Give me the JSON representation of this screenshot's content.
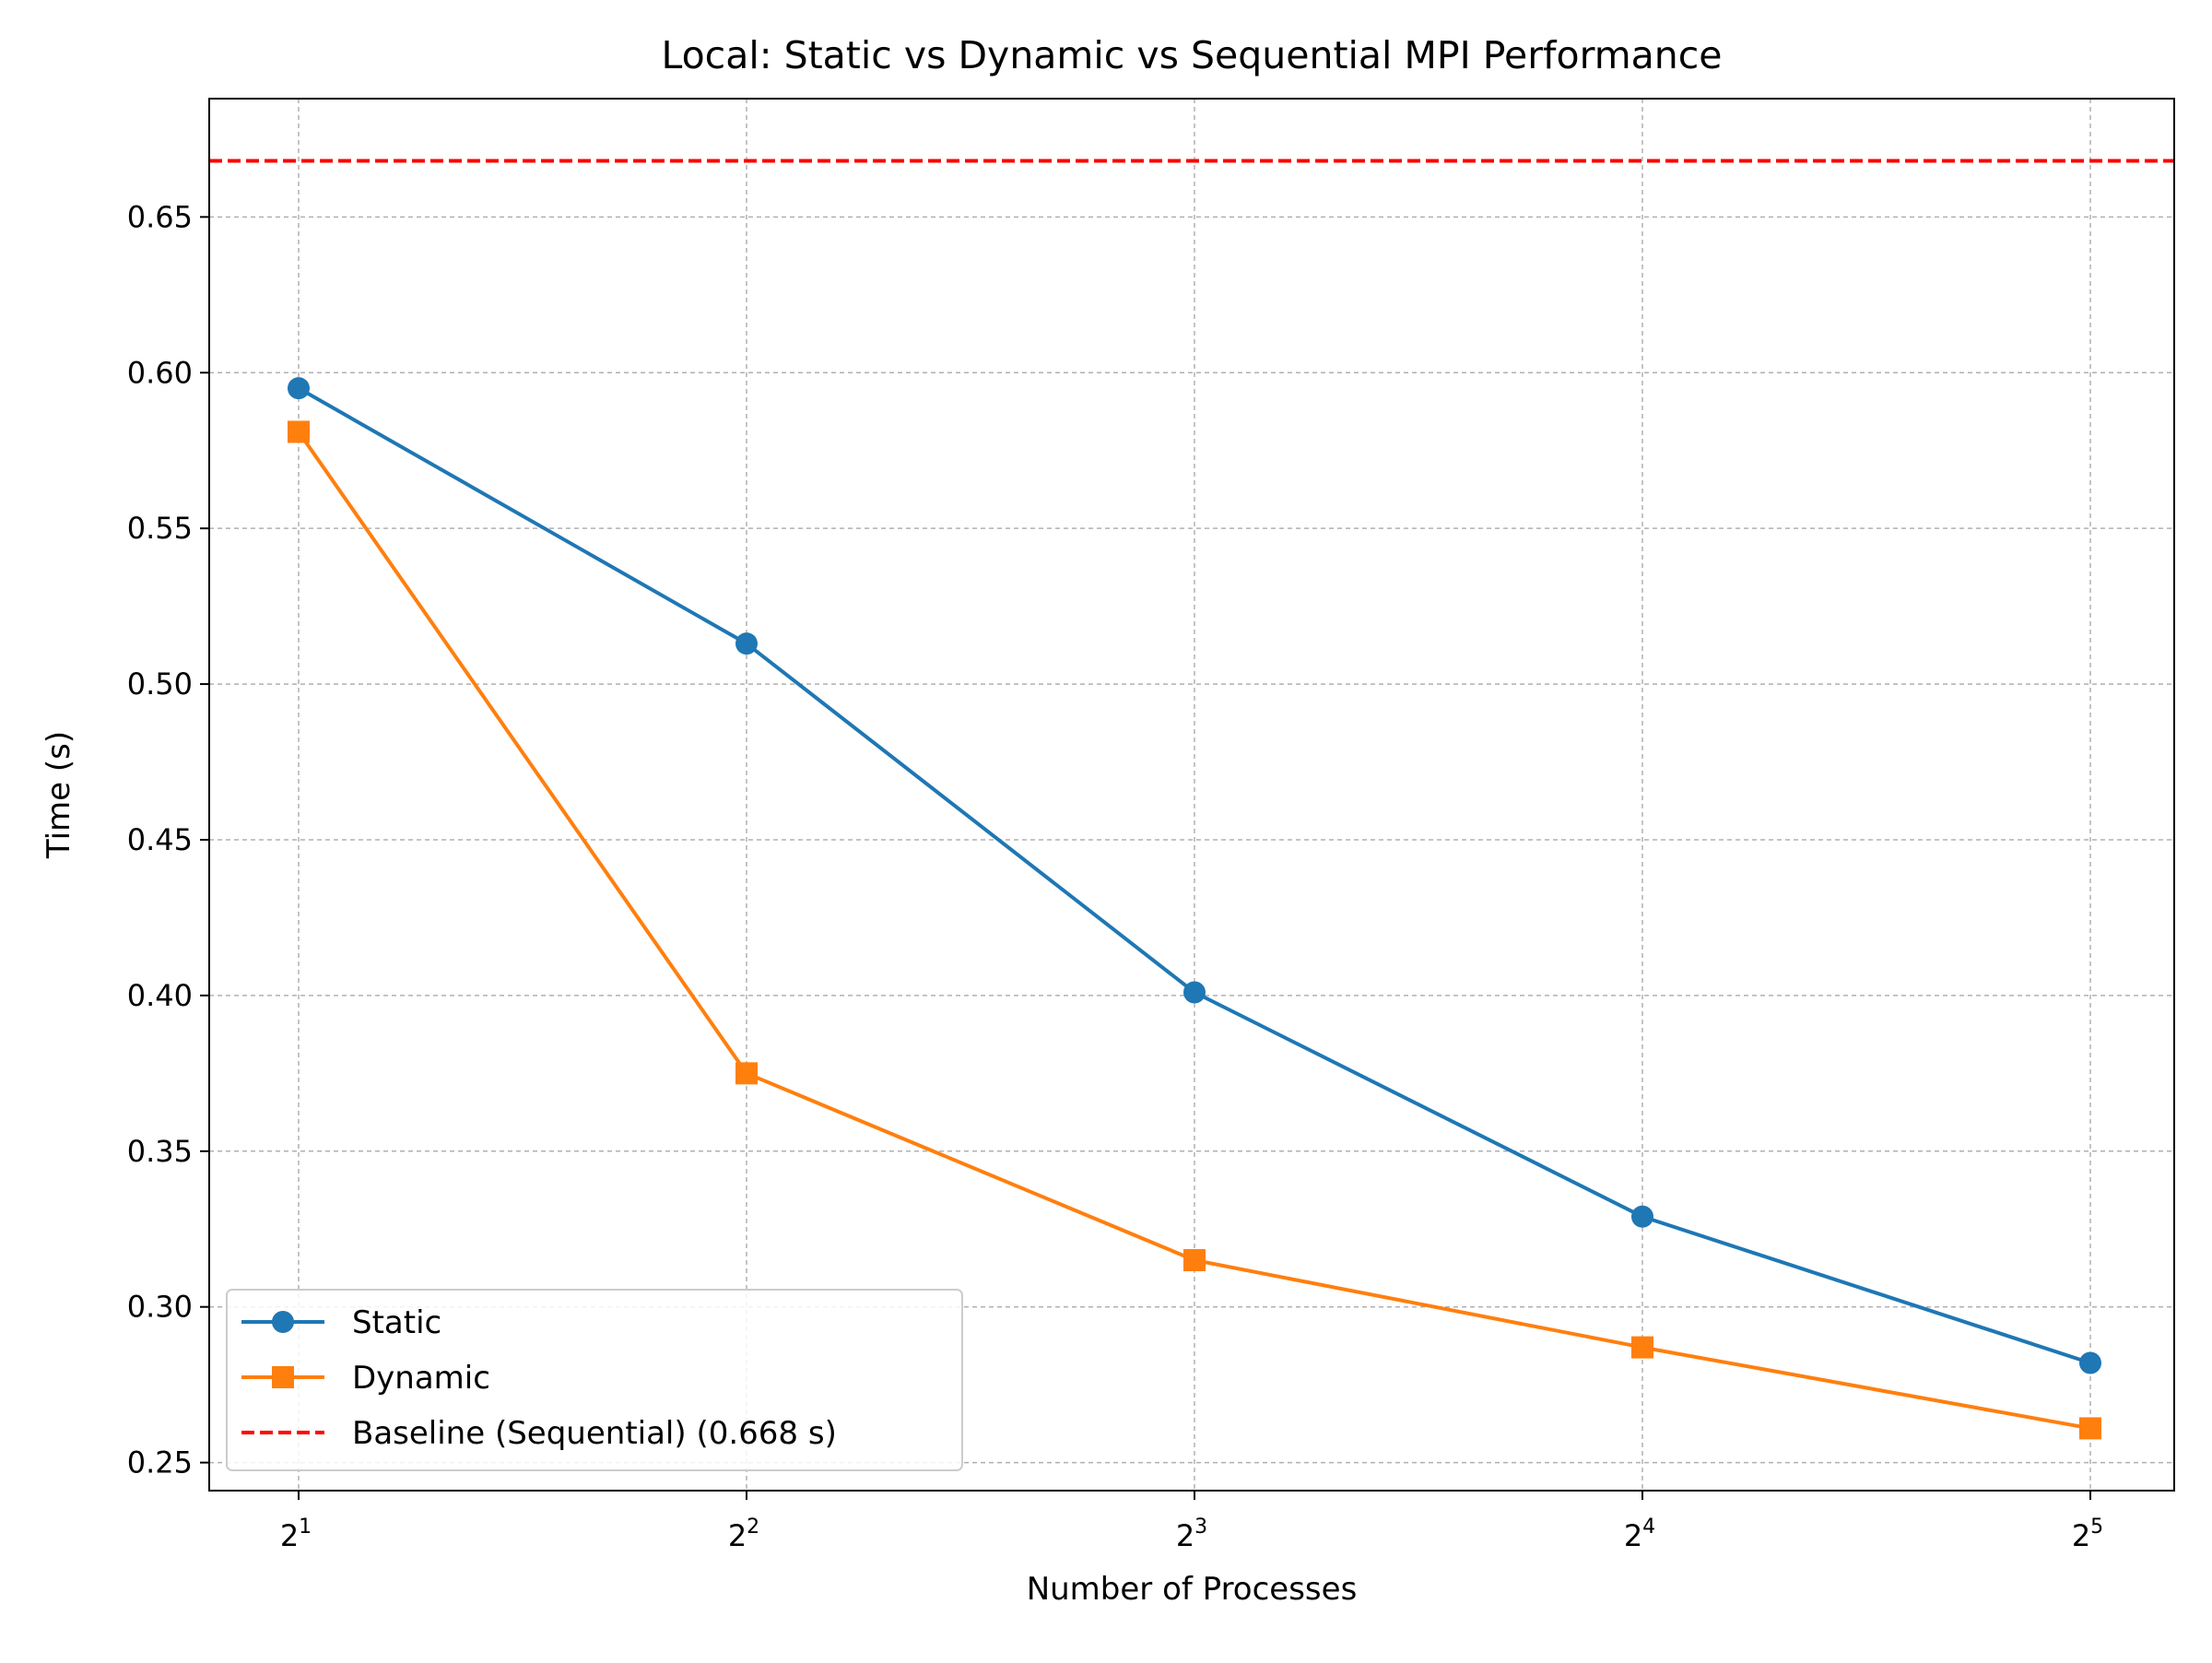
{
  "chart_data": {
    "type": "line",
    "title": "Local: Static vs Dynamic vs Sequential MPI Performance",
    "xlabel": "Number of Processes",
    "ylabel": "Time (s)",
    "x_scale": "log2",
    "x": [
      2,
      4,
      8,
      16,
      32
    ],
    "x_tick_labels": [
      {
        "base": "2",
        "exp": "1"
      },
      {
        "base": "2",
        "exp": "2"
      },
      {
        "base": "2",
        "exp": "3"
      },
      {
        "base": "2",
        "exp": "4"
      },
      {
        "base": "2",
        "exp": "5"
      }
    ],
    "ylim": [
      0.241,
      0.688
    ],
    "y_ticks": [
      "0.25",
      "0.30",
      "0.35",
      "0.40",
      "0.45",
      "0.50",
      "0.55",
      "0.60",
      "0.65"
    ],
    "grid": true,
    "legend_position": "lower-left",
    "series": [
      {
        "name": "Static",
        "values": [
          0.595,
          0.513,
          0.401,
          0.329,
          0.282
        ],
        "color": "#1f77b4",
        "marker": "circle"
      },
      {
        "name": "Dynamic",
        "values": [
          0.581,
          0.375,
          0.315,
          0.287,
          0.261
        ],
        "color": "#ff7f0e",
        "marker": "square"
      }
    ],
    "baseline": {
      "name": "Baseline (Sequential) (0.668 s)",
      "value": 0.668,
      "color": "#ff0000",
      "style": "dashed"
    }
  }
}
